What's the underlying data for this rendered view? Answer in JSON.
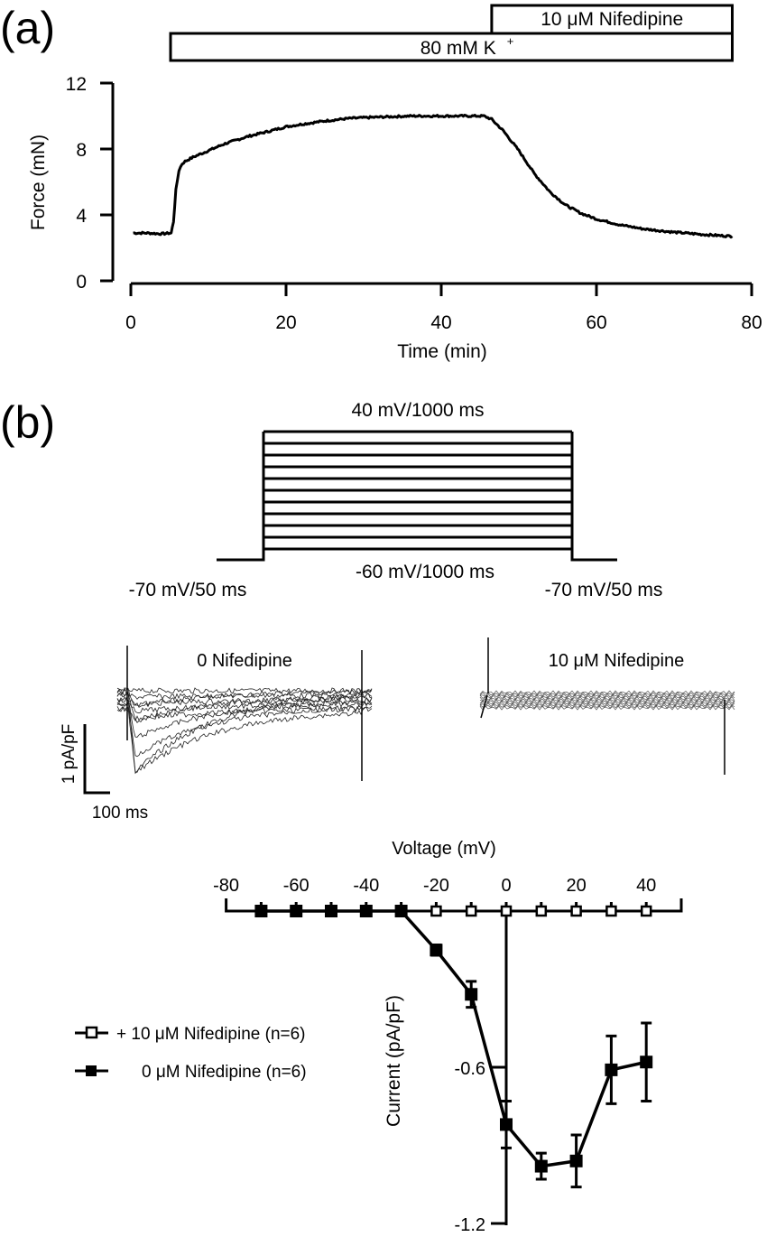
{
  "chart_data": [
    {
      "panel": "a",
      "type": "line",
      "panel_label": "(a)",
      "xlabel": "Time (min)",
      "ylabel": "Force (mN)",
      "xlim": [
        0,
        80
      ],
      "ylim": [
        0,
        12
      ],
      "xticks": [
        0,
        20,
        40,
        60,
        80
      ],
      "yticks": [
        0,
        4,
        8,
        12
      ],
      "grid": false,
      "annotations": [
        {
          "label": "80 mM K+",
          "start": 5,
          "end": 77.5
        },
        {
          "label": "10 μM Nifedipine",
          "start": 46.5,
          "end": 77.5
        }
      ],
      "series": [
        {
          "name": "Force trace",
          "x": [
            0.3,
            2,
            4,
            5.2,
            5.5,
            5.8,
            6.2,
            6.6,
            7,
            8,
            10,
            12,
            15,
            18,
            20,
            22,
            25,
            28,
            30,
            33,
            36,
            40,
            43,
            45.5,
            46.5,
            48,
            50,
            52,
            54,
            56,
            58,
            60,
            63,
            66,
            70,
            74,
            77.5
          ],
          "values": [
            2.9,
            2.9,
            2.85,
            2.9,
            3.6,
            5.5,
            6.7,
            7.1,
            7.25,
            7.5,
            7.9,
            8.3,
            8.75,
            9.1,
            9.35,
            9.5,
            9.7,
            9.85,
            9.9,
            9.95,
            10.0,
            10.0,
            10.0,
            10.0,
            9.8,
            9.1,
            7.9,
            6.5,
            5.4,
            4.6,
            4.1,
            3.75,
            3.4,
            3.15,
            2.95,
            2.8,
            2.7
          ]
        }
      ]
    },
    {
      "panel": "b-protocol",
      "type": "diagram",
      "panel_label": "(b)",
      "labels": {
        "top": "40 mV/1000 ms",
        "bottom": "-60 mV/1000 ms",
        "left": "-70 mV/50 ms",
        "right": "-70 mV/50 ms"
      },
      "steps_mV": [
        -60,
        -50,
        -40,
        -30,
        -20,
        -10,
        0,
        10,
        20,
        30,
        40
      ],
      "holding_mV": -70
    },
    {
      "panel": "b-traces",
      "type": "line",
      "traces": [
        {
          "title": "0 Nifedipine"
        },
        {
          "title": "10 μM Nifedipine"
        }
      ],
      "scale_bar": {
        "y_label": "1 pA/pF",
        "x_label": "100 ms"
      }
    },
    {
      "panel": "b-iv",
      "type": "line",
      "xlabel": "Voltage (mV)",
      "ylabel": "Current (pA/pF)",
      "xlim": [
        -80,
        50
      ],
      "ylim": [
        -1.2,
        0
      ],
      "xticks": [
        -80,
        -60,
        -40,
        -20,
        0,
        20,
        40
      ],
      "yticks": [
        -0.6,
        -1.2
      ],
      "grid": false,
      "x": [
        -70,
        -60,
        -50,
        -40,
        -30,
        -20,
        -10,
        0,
        10,
        20,
        30,
        40
      ],
      "series": [
        {
          "name": "+ 10 μM Nifedipine (n=6)",
          "marker": "open-square",
          "values": [
            0,
            0,
            0,
            0,
            0,
            0,
            0,
            0,
            0,
            0,
            0,
            0
          ],
          "errors": [
            0.01,
            0.01,
            0.01,
            0.01,
            0.01,
            0.01,
            0.01,
            0.01,
            0.01,
            0.01,
            0.01,
            0.01
          ]
        },
        {
          "name": "0 μM Nifedipine (n=6)",
          "marker": "filled-square",
          "values": [
            0,
            0,
            0,
            0,
            0,
            -0.15,
            -0.32,
            -0.82,
            -0.98,
            -0.96,
            -0.61,
            -0.58
          ],
          "errors": [
            0.01,
            0.01,
            0.01,
            0.01,
            0.01,
            0.02,
            0.05,
            0.09,
            0.05,
            0.1,
            0.13,
            0.15
          ]
        }
      ]
    }
  ]
}
